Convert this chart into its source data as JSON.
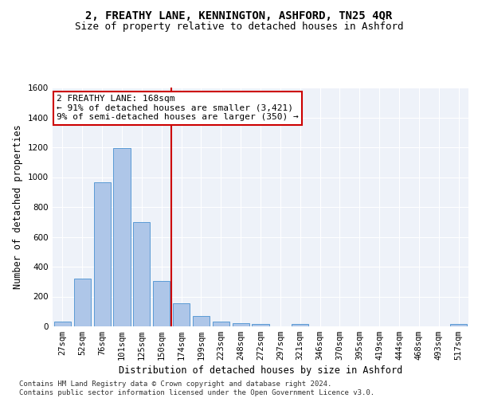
{
  "title": "2, FREATHY LANE, KENNINGTON, ASHFORD, TN25 4QR",
  "subtitle": "Size of property relative to detached houses in Ashford",
  "xlabel": "Distribution of detached houses by size in Ashford",
  "ylabel": "Number of detached properties",
  "bar_labels": [
    "27sqm",
    "52sqm",
    "76sqm",
    "101sqm",
    "125sqm",
    "150sqm",
    "174sqm",
    "199sqm",
    "223sqm",
    "248sqm",
    "272sqm",
    "297sqm",
    "321sqm",
    "346sqm",
    "370sqm",
    "395sqm",
    "419sqm",
    "444sqm",
    "468sqm",
    "493sqm",
    "517sqm"
  ],
  "bar_values": [
    30,
    320,
    965,
    1195,
    700,
    305,
    155,
    70,
    30,
    20,
    15,
    0,
    15,
    0,
    0,
    0,
    0,
    0,
    0,
    0,
    15
  ],
  "bar_color": "#aec6e8",
  "bar_edgecolor": "#5b9bd5",
  "vline_x": 5.5,
  "vline_color": "#cc0000",
  "ylim": [
    0,
    1600
  ],
  "yticks": [
    0,
    200,
    400,
    600,
    800,
    1000,
    1200,
    1400,
    1600
  ],
  "annotation_text": "2 FREATHY LANE: 168sqm\n← 91% of detached houses are smaller (3,421)\n9% of semi-detached houses are larger (350) →",
  "annotation_box_color": "#ffffff",
  "annotation_box_edgecolor": "#cc0000",
  "footer_line1": "Contains HM Land Registry data © Crown copyright and database right 2024.",
  "footer_line2": "Contains public sector information licensed under the Open Government Licence v3.0.",
  "background_color": "#eef2f9",
  "grid_color": "#ffffff",
  "title_fontsize": 10,
  "subtitle_fontsize": 9,
  "axis_label_fontsize": 8.5,
  "tick_fontsize": 7.5,
  "annotation_fontsize": 8,
  "footer_fontsize": 6.5
}
